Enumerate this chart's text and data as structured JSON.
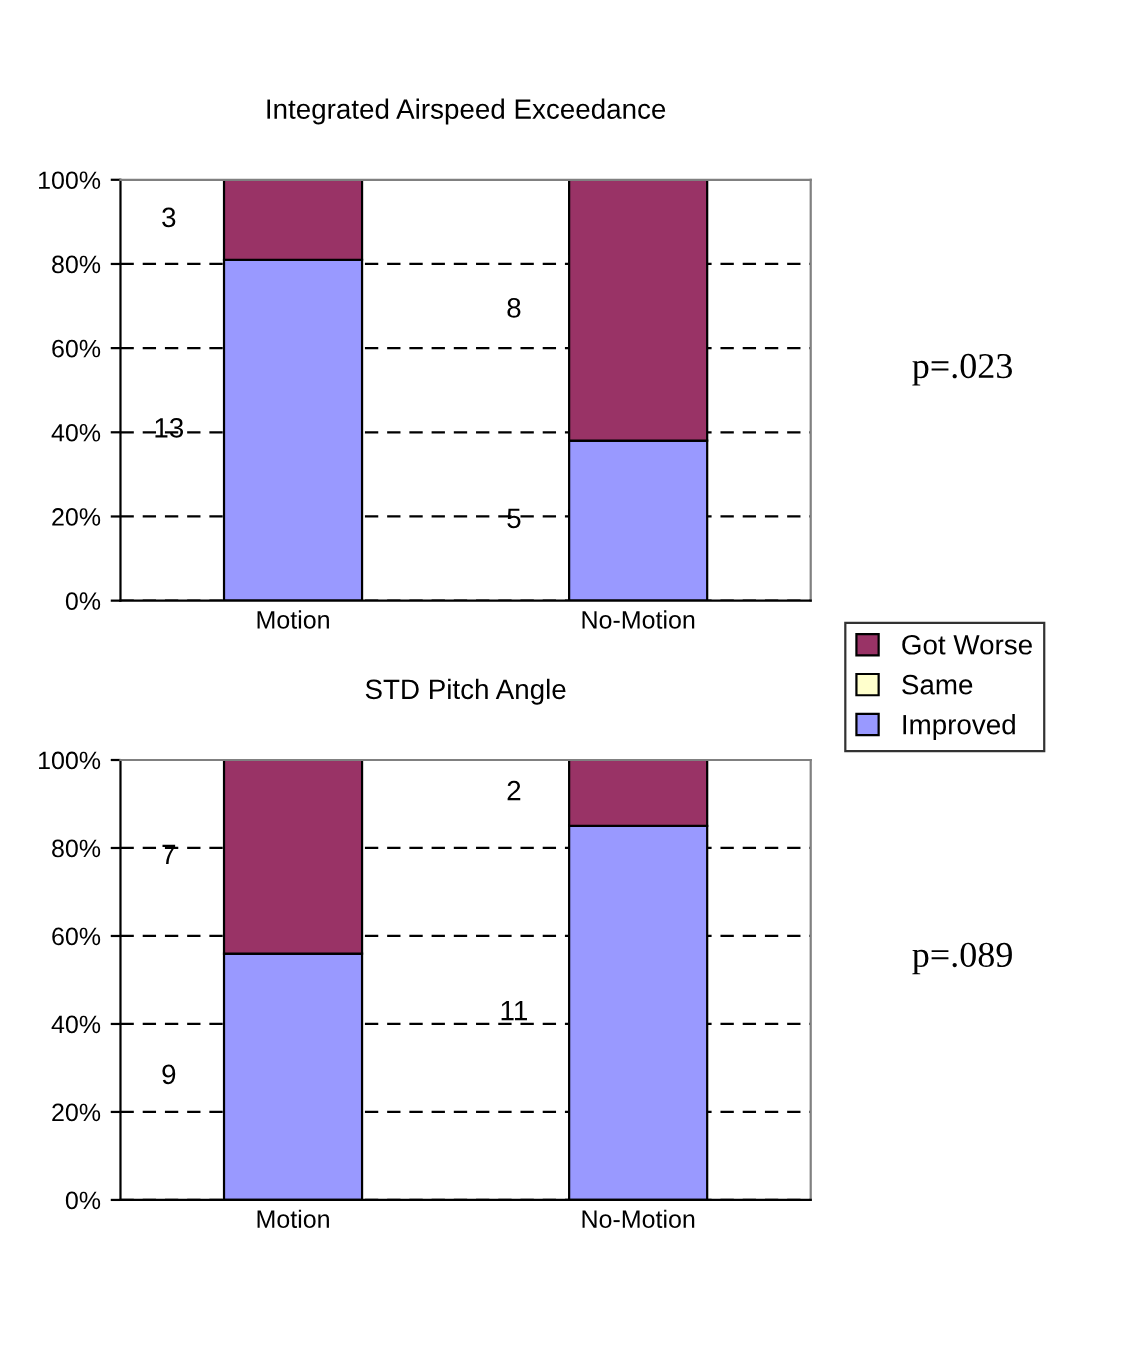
{
  "chart_data": [
    {
      "type": "bar",
      "title": "Integrated Airspeed Exceedance",
      "categories": [
        "Motion",
        "No-Motion"
      ],
      "stacked": true,
      "ylim": [
        0,
        100
      ],
      "yticks": [
        {
          "value": 0,
          "label": "0%"
        },
        {
          "value": 20,
          "label": "20%"
        },
        {
          "value": 40,
          "label": "40%"
        },
        {
          "value": 60,
          "label": "60%"
        },
        {
          "value": 80,
          "label": "80%"
        },
        {
          "value": 100,
          "label": "100%"
        }
      ],
      "grid": "y",
      "legend": "right",
      "annotations": [
        "p=.023",
        "3",
        "13",
        "8",
        "5"
      ],
      "series": [
        {
          "name": "Improved",
          "color": "#9999ff",
          "values": [
            81,
            38
          ]
        },
        {
          "name": "Same",
          "color": "#ffffcc",
          "values": [
            0,
            0
          ]
        },
        {
          "name": "Got Worse",
          "color": "#993366",
          "values": [
            19,
            62
          ]
        }
      ]
    },
    {
      "type": "bar",
      "title": "STD Pitch Angle",
      "categories": [
        "Motion",
        "No-Motion"
      ],
      "stacked": true,
      "ylim": [
        0,
        100
      ],
      "yticks": [
        {
          "value": 0,
          "label": "0%"
        },
        {
          "value": 20,
          "label": "20%"
        },
        {
          "value": 40,
          "label": "40%"
        },
        {
          "value": 60,
          "label": "60%"
        },
        {
          "value": 80,
          "label": "80%"
        },
        {
          "value": 100,
          "label": "100%"
        }
      ],
      "grid": "y",
      "annotations": [
        "p=.089",
        "7",
        "9",
        "2",
        "11"
      ],
      "series": [
        {
          "color": "#9999ff",
          "values": [
            56,
            85
          ]
        },
        {
          "color": "#ffffcc",
          "values": [
            0,
            0
          ]
        },
        {
          "color": "#993366",
          "values": [
            44,
            15
          ]
        }
      ]
    }
  ]
}
